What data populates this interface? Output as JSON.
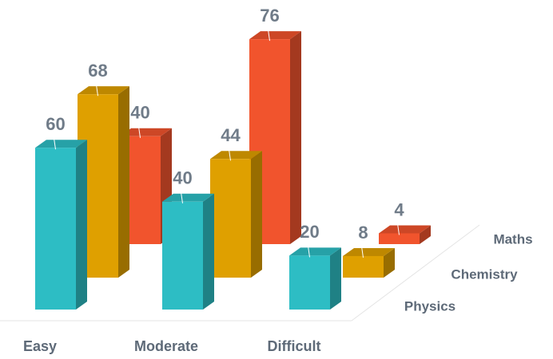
{
  "chart_data": {
    "type": "bar3d",
    "categories": [
      "Easy",
      "Moderate",
      "Difficult"
    ],
    "series": [
      {
        "name": "Physics",
        "color": "#2dbdc4",
        "values": [
          60,
          40,
          20
        ]
      },
      {
        "name": "Chemistry",
        "color": "#dfa000",
        "values": [
          68,
          44,
          8
        ]
      },
      {
        "name": "Maths",
        "color": "#f1542d",
        "values": [
          40,
          76,
          4
        ]
      }
    ]
  }
}
